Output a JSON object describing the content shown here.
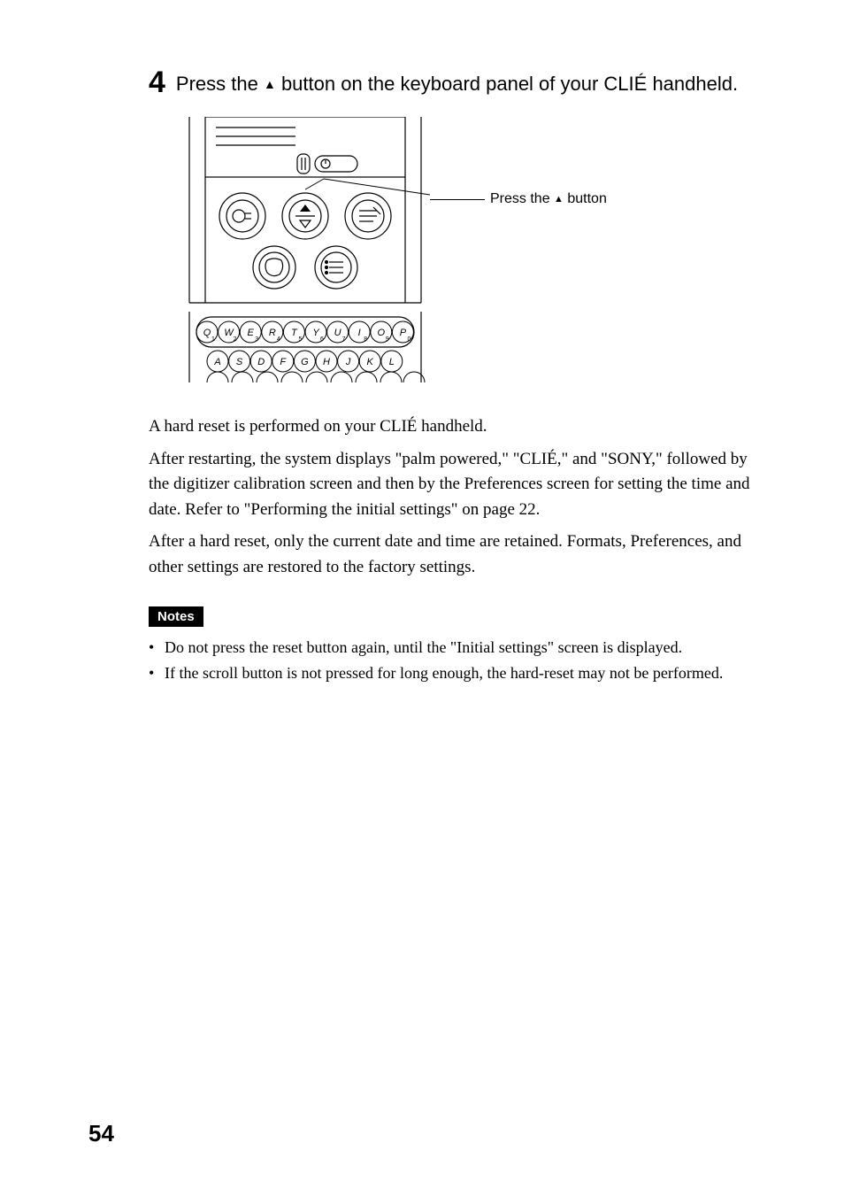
{
  "step": {
    "number": "4",
    "text_before": "Press the ",
    "triangle": "▲",
    "text_after": " button on the keyboard panel of your CLIÉ handheld."
  },
  "callout": {
    "prefix": "Press the ",
    "triangle": "▲",
    "suffix": " button"
  },
  "body": {
    "p1": "A hard reset is performed on your CLIÉ handheld.",
    "p2": "After restarting, the system displays \"palm powered,\" \"CLIÉ,\" and \"SONY,\" followed by the digitizer calibration screen and then by the Preferences screen for setting the time and date. Refer to \"Performing the initial settings\" on page 22.",
    "p3": "After a hard reset, only the current date and time are retained. Formats, Preferences, and other settings are restored to the factory settings."
  },
  "notes": {
    "label": "Notes",
    "items": [
      "Do not press the reset button again, until the \"Initial settings\" screen is displayed.",
      "If the scroll button is not pressed for long enough, the hard-reset may not be performed."
    ]
  },
  "page_number": "54",
  "figure": {
    "keyboard_rows": [
      [
        "Q",
        "W",
        "E",
        "R",
        "T",
        "Y",
        "U",
        "I",
        "O",
        "P"
      ],
      [
        "A",
        "S",
        "D",
        "F",
        "G",
        "H",
        "J",
        "K",
        "L"
      ]
    ],
    "key_subscripts_row1": [
      "1",
      "2",
      "3",
      "4",
      "5",
      "6",
      "7",
      "8",
      "9",
      "0"
    ],
    "colors": {
      "stroke": "#000000",
      "fill": "#ffffff",
      "highlight": "#000000"
    },
    "stroke_width": 1.2
  }
}
